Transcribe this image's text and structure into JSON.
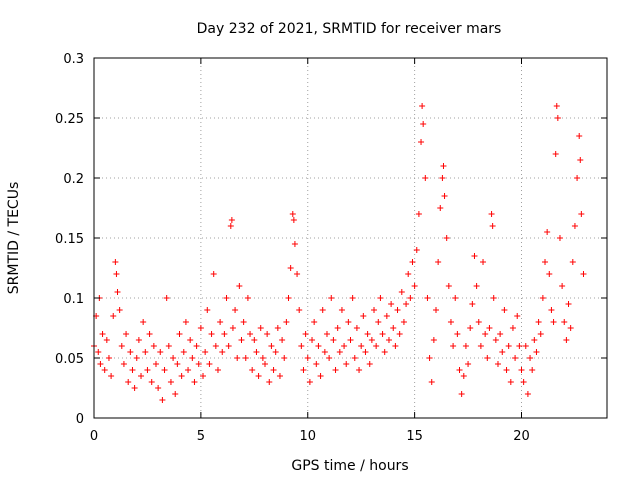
{
  "chart_data": {
    "type": "scatter",
    "title": "Day 232 of 2021, SRMTID for receiver mars",
    "xlabel": "GPS time / hours",
    "ylabel": "SRMTID / TECUs",
    "xlim": [
      0,
      24
    ],
    "ylim": [
      0,
      0.3
    ],
    "xticks": [
      0,
      5,
      10,
      15,
      20
    ],
    "yticks": [
      0,
      0.05,
      0.1,
      0.15,
      0.2,
      0.25,
      0.3
    ],
    "grid": true,
    "marker": "+",
    "color": "#ff0000",
    "series": [
      {
        "name": "SRMTID",
        "points": [
          [
            0.0,
            0.06
          ],
          [
            0.1,
            0.085
          ],
          [
            0.2,
            0.055
          ],
          [
            0.25,
            0.1
          ],
          [
            0.3,
            0.045
          ],
          [
            0.4,
            0.07
          ],
          [
            0.5,
            0.04
          ],
          [
            0.6,
            0.065
          ],
          [
            0.7,
            0.05
          ],
          [
            0.8,
            0.035
          ],
          [
            0.9,
            0.085
          ],
          [
            1.0,
            0.13
          ],
          [
            1.05,
            0.12
          ],
          [
            1.1,
            0.105
          ],
          [
            1.2,
            0.09
          ],
          [
            1.3,
            0.06
          ],
          [
            1.4,
            0.045
          ],
          [
            1.5,
            0.07
          ],
          [
            1.6,
            0.03
          ],
          [
            1.7,
            0.055
          ],
          [
            1.8,
            0.04
          ],
          [
            1.9,
            0.025
          ],
          [
            2.0,
            0.05
          ],
          [
            2.1,
            0.065
          ],
          [
            2.2,
            0.035
          ],
          [
            2.3,
            0.08
          ],
          [
            2.4,
            0.055
          ],
          [
            2.5,
            0.04
          ],
          [
            2.6,
            0.07
          ],
          [
            2.7,
            0.03
          ],
          [
            2.8,
            0.06
          ],
          [
            2.9,
            0.045
          ],
          [
            3.0,
            0.025
          ],
          [
            3.1,
            0.055
          ],
          [
            3.2,
            0.015
          ],
          [
            3.3,
            0.04
          ],
          [
            3.4,
            0.1
          ],
          [
            3.5,
            0.06
          ],
          [
            3.6,
            0.03
          ],
          [
            3.7,
            0.05
          ],
          [
            3.8,
            0.02
          ],
          [
            3.9,
            0.045
          ],
          [
            4.0,
            0.07
          ],
          [
            4.1,
            0.035
          ],
          [
            4.2,
            0.055
          ],
          [
            4.3,
            0.08
          ],
          [
            4.4,
            0.04
          ],
          [
            4.5,
            0.065
          ],
          [
            4.6,
            0.05
          ],
          [
            4.7,
            0.03
          ],
          [
            4.8,
            0.06
          ],
          [
            4.9,
            0.045
          ],
          [
            5.0,
            0.075
          ],
          [
            5.1,
            0.035
          ],
          [
            5.2,
            0.055
          ],
          [
            5.3,
            0.09
          ],
          [
            5.4,
            0.045
          ],
          [
            5.5,
            0.07
          ],
          [
            5.6,
            0.12
          ],
          [
            5.7,
            0.06
          ],
          [
            5.8,
            0.04
          ],
          [
            5.9,
            0.08
          ],
          [
            6.0,
            0.055
          ],
          [
            6.1,
            0.07
          ],
          [
            6.2,
            0.1
          ],
          [
            6.3,
            0.06
          ],
          [
            6.4,
            0.16
          ],
          [
            6.45,
            0.165
          ],
          [
            6.5,
            0.075
          ],
          [
            6.6,
            0.09
          ],
          [
            6.7,
            0.05
          ],
          [
            6.8,
            0.11
          ],
          [
            6.9,
            0.065
          ],
          [
            7.0,
            0.08
          ],
          [
            7.1,
            0.05
          ],
          [
            7.2,
            0.1
          ],
          [
            7.3,
            0.07
          ],
          [
            7.4,
            0.04
          ],
          [
            7.5,
            0.065
          ],
          [
            7.6,
            0.055
          ],
          [
            7.7,
            0.035
          ],
          [
            7.8,
            0.075
          ],
          [
            7.9,
            0.05
          ],
          [
            8.0,
            0.045
          ],
          [
            8.1,
            0.07
          ],
          [
            8.2,
            0.03
          ],
          [
            8.3,
            0.06
          ],
          [
            8.4,
            0.04
          ],
          [
            8.5,
            0.055
          ],
          [
            8.6,
            0.075
          ],
          [
            8.7,
            0.035
          ],
          [
            8.8,
            0.065
          ],
          [
            8.9,
            0.05
          ],
          [
            9.0,
            0.08
          ],
          [
            9.1,
            0.1
          ],
          [
            9.2,
            0.125
          ],
          [
            9.3,
            0.17
          ],
          [
            9.35,
            0.165
          ],
          [
            9.4,
            0.145
          ],
          [
            9.5,
            0.12
          ],
          [
            9.6,
            0.09
          ],
          [
            9.7,
            0.06
          ],
          [
            9.8,
            0.04
          ],
          [
            9.9,
            0.07
          ],
          [
            10.0,
            0.05
          ],
          [
            10.1,
            0.03
          ],
          [
            10.2,
            0.065
          ],
          [
            10.3,
            0.08
          ],
          [
            10.4,
            0.045
          ],
          [
            10.5,
            0.06
          ],
          [
            10.6,
            0.035
          ],
          [
            10.7,
            0.09
          ],
          [
            10.8,
            0.055
          ],
          [
            10.9,
            0.07
          ],
          [
            11.0,
            0.05
          ],
          [
            11.1,
            0.1
          ],
          [
            11.2,
            0.065
          ],
          [
            11.3,
            0.04
          ],
          [
            11.4,
            0.075
          ],
          [
            11.5,
            0.055
          ],
          [
            11.6,
            0.09
          ],
          [
            11.7,
            0.06
          ],
          [
            11.8,
            0.045
          ],
          [
            11.9,
            0.08
          ],
          [
            12.0,
            0.065
          ],
          [
            12.1,
            0.1
          ],
          [
            12.2,
            0.05
          ],
          [
            12.3,
            0.075
          ],
          [
            12.4,
            0.04
          ],
          [
            12.5,
            0.06
          ],
          [
            12.6,
            0.085
          ],
          [
            12.7,
            0.055
          ],
          [
            12.8,
            0.07
          ],
          [
            12.9,
            0.045
          ],
          [
            13.0,
            0.065
          ],
          [
            13.1,
            0.09
          ],
          [
            13.2,
            0.06
          ],
          [
            13.3,
            0.08
          ],
          [
            13.4,
            0.1
          ],
          [
            13.5,
            0.07
          ],
          [
            13.6,
            0.055
          ],
          [
            13.7,
            0.085
          ],
          [
            13.8,
            0.065
          ],
          [
            13.9,
            0.095
          ],
          [
            14.0,
            0.075
          ],
          [
            14.1,
            0.06
          ],
          [
            14.2,
            0.09
          ],
          [
            14.3,
            0.07
          ],
          [
            14.4,
            0.105
          ],
          [
            14.5,
            0.08
          ],
          [
            14.6,
            0.095
          ],
          [
            14.7,
            0.12
          ],
          [
            14.8,
            0.1
          ],
          [
            14.9,
            0.13
          ],
          [
            15.0,
            0.11
          ],
          [
            15.1,
            0.14
          ],
          [
            15.2,
            0.17
          ],
          [
            15.3,
            0.23
          ],
          [
            15.35,
            0.26
          ],
          [
            15.4,
            0.245
          ],
          [
            15.5,
            0.2
          ],
          [
            15.6,
            0.1
          ],
          [
            15.7,
            0.05
          ],
          [
            15.8,
            0.03
          ],
          [
            15.9,
            0.065
          ],
          [
            16.0,
            0.09
          ],
          [
            16.1,
            0.13
          ],
          [
            16.2,
            0.175
          ],
          [
            16.3,
            0.2
          ],
          [
            16.35,
            0.21
          ],
          [
            16.4,
            0.185
          ],
          [
            16.5,
            0.15
          ],
          [
            16.6,
            0.11
          ],
          [
            16.7,
            0.08
          ],
          [
            16.8,
            0.06
          ],
          [
            16.9,
            0.1
          ],
          [
            17.0,
            0.07
          ],
          [
            17.1,
            0.04
          ],
          [
            17.2,
            0.02
          ],
          [
            17.3,
            0.035
          ],
          [
            17.4,
            0.06
          ],
          [
            17.5,
            0.045
          ],
          [
            17.6,
            0.075
          ],
          [
            17.7,
            0.095
          ],
          [
            17.8,
            0.135
          ],
          [
            17.9,
            0.11
          ],
          [
            18.0,
            0.08
          ],
          [
            18.1,
            0.06
          ],
          [
            18.2,
            0.13
          ],
          [
            18.3,
            0.07
          ],
          [
            18.4,
            0.05
          ],
          [
            18.5,
            0.075
          ],
          [
            18.6,
            0.17
          ],
          [
            18.65,
            0.16
          ],
          [
            18.7,
            0.1
          ],
          [
            18.8,
            0.065
          ],
          [
            18.9,
            0.045
          ],
          [
            19.0,
            0.07
          ],
          [
            19.1,
            0.055
          ],
          [
            19.2,
            0.09
          ],
          [
            19.3,
            0.04
          ],
          [
            19.4,
            0.06
          ],
          [
            19.5,
            0.03
          ],
          [
            19.6,
            0.075
          ],
          [
            19.7,
            0.05
          ],
          [
            19.8,
            0.085
          ],
          [
            19.9,
            0.06
          ],
          [
            20.0,
            0.04
          ],
          [
            20.1,
            0.03
          ],
          [
            20.2,
            0.06
          ],
          [
            20.3,
            0.02
          ],
          [
            20.4,
            0.05
          ],
          [
            20.5,
            0.04
          ],
          [
            20.6,
            0.065
          ],
          [
            20.7,
            0.055
          ],
          [
            20.8,
            0.08
          ],
          [
            20.9,
            0.07
          ],
          [
            21.0,
            0.1
          ],
          [
            21.1,
            0.13
          ],
          [
            21.2,
            0.155
          ],
          [
            21.3,
            0.12
          ],
          [
            21.4,
            0.09
          ],
          [
            21.5,
            0.08
          ],
          [
            21.6,
            0.22
          ],
          [
            21.65,
            0.26
          ],
          [
            21.7,
            0.25
          ],
          [
            21.8,
            0.15
          ],
          [
            21.9,
            0.11
          ],
          [
            22.0,
            0.08
          ],
          [
            22.1,
            0.065
          ],
          [
            22.2,
            0.095
          ],
          [
            22.3,
            0.075
          ],
          [
            22.4,
            0.13
          ],
          [
            22.5,
            0.16
          ],
          [
            22.6,
            0.2
          ],
          [
            22.7,
            0.235
          ],
          [
            22.75,
            0.215
          ],
          [
            22.8,
            0.17
          ],
          [
            22.9,
            0.12
          ]
        ]
      }
    ]
  }
}
